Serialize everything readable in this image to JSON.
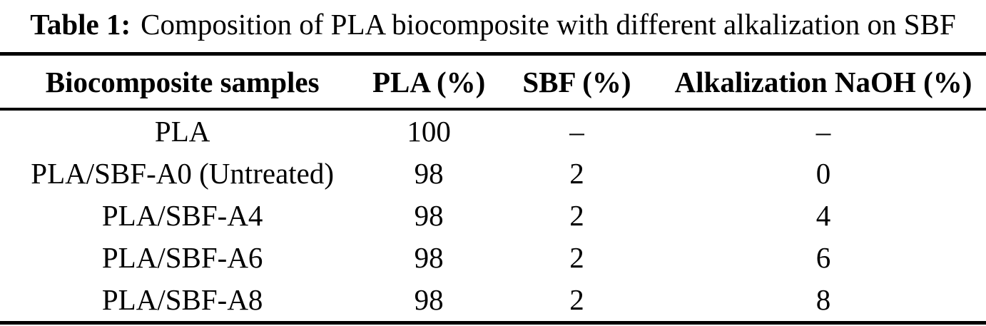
{
  "caption": {
    "label": "Table 1:",
    "text": "Composition of PLA biocomposite with different alkalization on SBF"
  },
  "table": {
    "columns": [
      "Biocomposite samples",
      "PLA (%)",
      "SBF (%)",
      "Alkalization NaOH (%)"
    ],
    "rows": [
      [
        "PLA",
        "100",
        "–",
        "–"
      ],
      [
        "PLA/SBF-A0 (Untreated)",
        "98",
        "2",
        "0"
      ],
      [
        "PLA/SBF-A4",
        "98",
        "2",
        "4"
      ],
      [
        "PLA/SBF-A6",
        "98",
        "2",
        "6"
      ],
      [
        "PLA/SBF-A8",
        "98",
        "2",
        "8"
      ]
    ]
  },
  "colors": {
    "text": "#000000",
    "background": "#ffffff",
    "rule": "#000000"
  }
}
